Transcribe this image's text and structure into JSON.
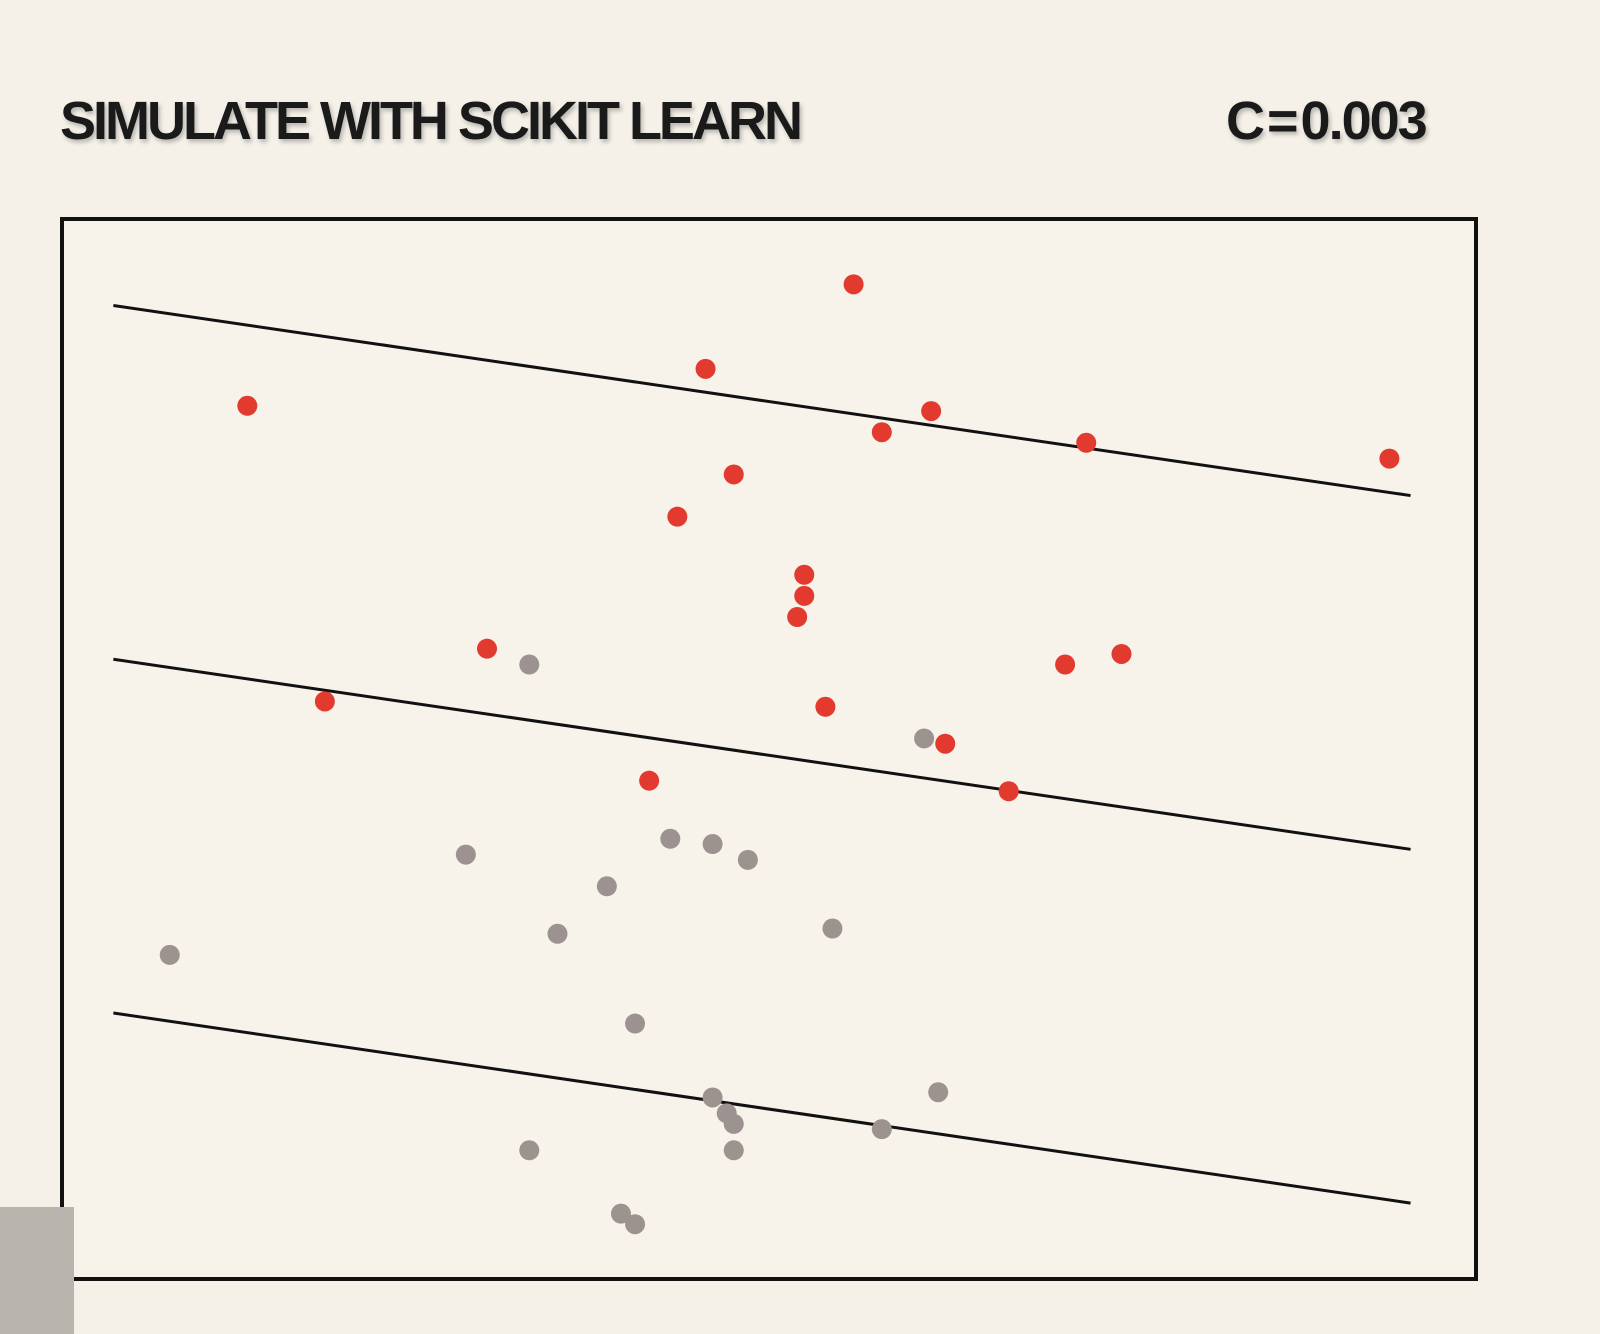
{
  "header": {
    "title": "SIMULATE WITH SCIKIT LEARN",
    "param_name": "C",
    "param_eq": "=",
    "param_value": "0.003"
  },
  "colors": {
    "background": "#f5f1e9",
    "class_positive": "#e23a2e",
    "class_negative": "#9c9390",
    "lines": "#111111"
  },
  "chart_data": {
    "type": "scatter",
    "title": "",
    "xlabel": "",
    "ylabel": "",
    "axes_visible": false,
    "grid": false,
    "xlim": [
      0,
      100
    ],
    "ylim": [
      0,
      100
    ],
    "series": [
      {
        "color": "#e23a2e",
        "points": [
          [
            56.0,
            94.0
          ],
          [
            45.5,
            86.0
          ],
          [
            13.0,
            82.5
          ],
          [
            61.5,
            82.0
          ],
          [
            58.0,
            80.0
          ],
          [
            72.5,
            79.0
          ],
          [
            94.0,
            77.5
          ],
          [
            47.5,
            76.0
          ],
          [
            43.5,
            72.0
          ],
          [
            52.5,
            66.5
          ],
          [
            52.5,
            64.5
          ],
          [
            52.0,
            62.5
          ],
          [
            30.0,
            59.5
          ],
          [
            71.0,
            58.0
          ],
          [
            75.0,
            59.0
          ],
          [
            18.5,
            54.5
          ],
          [
            54.0,
            54.0
          ],
          [
            62.5,
            50.5
          ],
          [
            41.5,
            47.0
          ],
          [
            67.0,
            46.0
          ]
        ]
      },
      {
        "color": "#9c9390",
        "points": [
          [
            33.0,
            58.0
          ],
          [
            61.0,
            51.0
          ],
          [
            43.0,
            41.5
          ],
          [
            46.0,
            41.0
          ],
          [
            48.5,
            39.5
          ],
          [
            28.5,
            40.0
          ],
          [
            38.5,
            37.0
          ],
          [
            54.5,
            33.0
          ],
          [
            35.0,
            32.5
          ],
          [
            7.5,
            30.5
          ],
          [
            40.5,
            24.0
          ],
          [
            62.0,
            17.5
          ],
          [
            46.0,
            17.0
          ],
          [
            47.0,
            15.5
          ],
          [
            47.5,
            14.5
          ],
          [
            58.0,
            14.0
          ],
          [
            47.5,
            12.0
          ],
          [
            33.0,
            12.0
          ],
          [
            39.5,
            6.0
          ],
          [
            40.5,
            5.0
          ]
        ]
      }
    ],
    "lines": [
      {
        "name": "margin-upper",
        "x": [
          3.5,
          95.5
        ],
        "y": [
          92.0,
          74.0
        ]
      },
      {
        "name": "decision-boundary",
        "x": [
          3.5,
          95.5
        ],
        "y": [
          58.5,
          40.5
        ]
      },
      {
        "name": "margin-lower",
        "x": [
          3.5,
          95.5
        ],
        "y": [
          25.0,
          7.0
        ]
      }
    ]
  }
}
